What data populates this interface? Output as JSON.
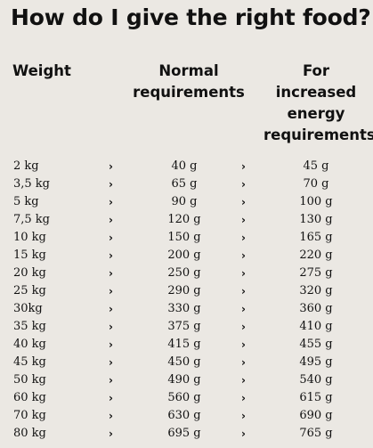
{
  "title": "How do I give the right food?",
  "headers": {
    "weight": "Weight",
    "normal": [
      "Normal",
      "requirements"
    ],
    "increased": [
      "For",
      "increased",
      "energy",
      "requirements"
    ]
  },
  "arrow_glyph": "›",
  "rows": [
    {
      "weight": "2 kg",
      "normal": "40 g",
      "increased": "45 g"
    },
    {
      "weight": "3,5 kg",
      "normal": "65 g",
      "increased": "70 g"
    },
    {
      "weight": "5 kg",
      "normal": "90 g",
      "increased": "100 g"
    },
    {
      "weight": "7,5 kg",
      "normal": "120 g",
      "increased": "130 g"
    },
    {
      "weight": "10 kg",
      "normal": "150 g",
      "increased": "165 g"
    },
    {
      "weight": "15 kg",
      "normal": "200 g",
      "increased": "220 g"
    },
    {
      "weight": "20 kg",
      "normal": "250 g",
      "increased": "275 g"
    },
    {
      "weight": "25 kg",
      "normal": "290 g",
      "increased": "320 g"
    },
    {
      "weight": "30kg",
      "normal": "330 g",
      "increased": "360 g"
    },
    {
      "weight": "35 kg",
      "normal": "375 g",
      "increased": "410 g"
    },
    {
      "weight": "40 kg",
      "normal": "415 g",
      "increased": "455 g"
    },
    {
      "weight": "45 kg",
      "normal": "450 g",
      "increased": "495 g"
    },
    {
      "weight": "50 kg",
      "normal": "490 g",
      "increased": "540 g"
    },
    {
      "weight": "60 kg",
      "normal": "560 g",
      "increased": "615 g"
    },
    {
      "weight": "70 kg",
      "normal": "630 g",
      "increased": "690 g"
    },
    {
      "weight": "80 kg",
      "normal": "695 g",
      "increased": "765 g"
    }
  ]
}
